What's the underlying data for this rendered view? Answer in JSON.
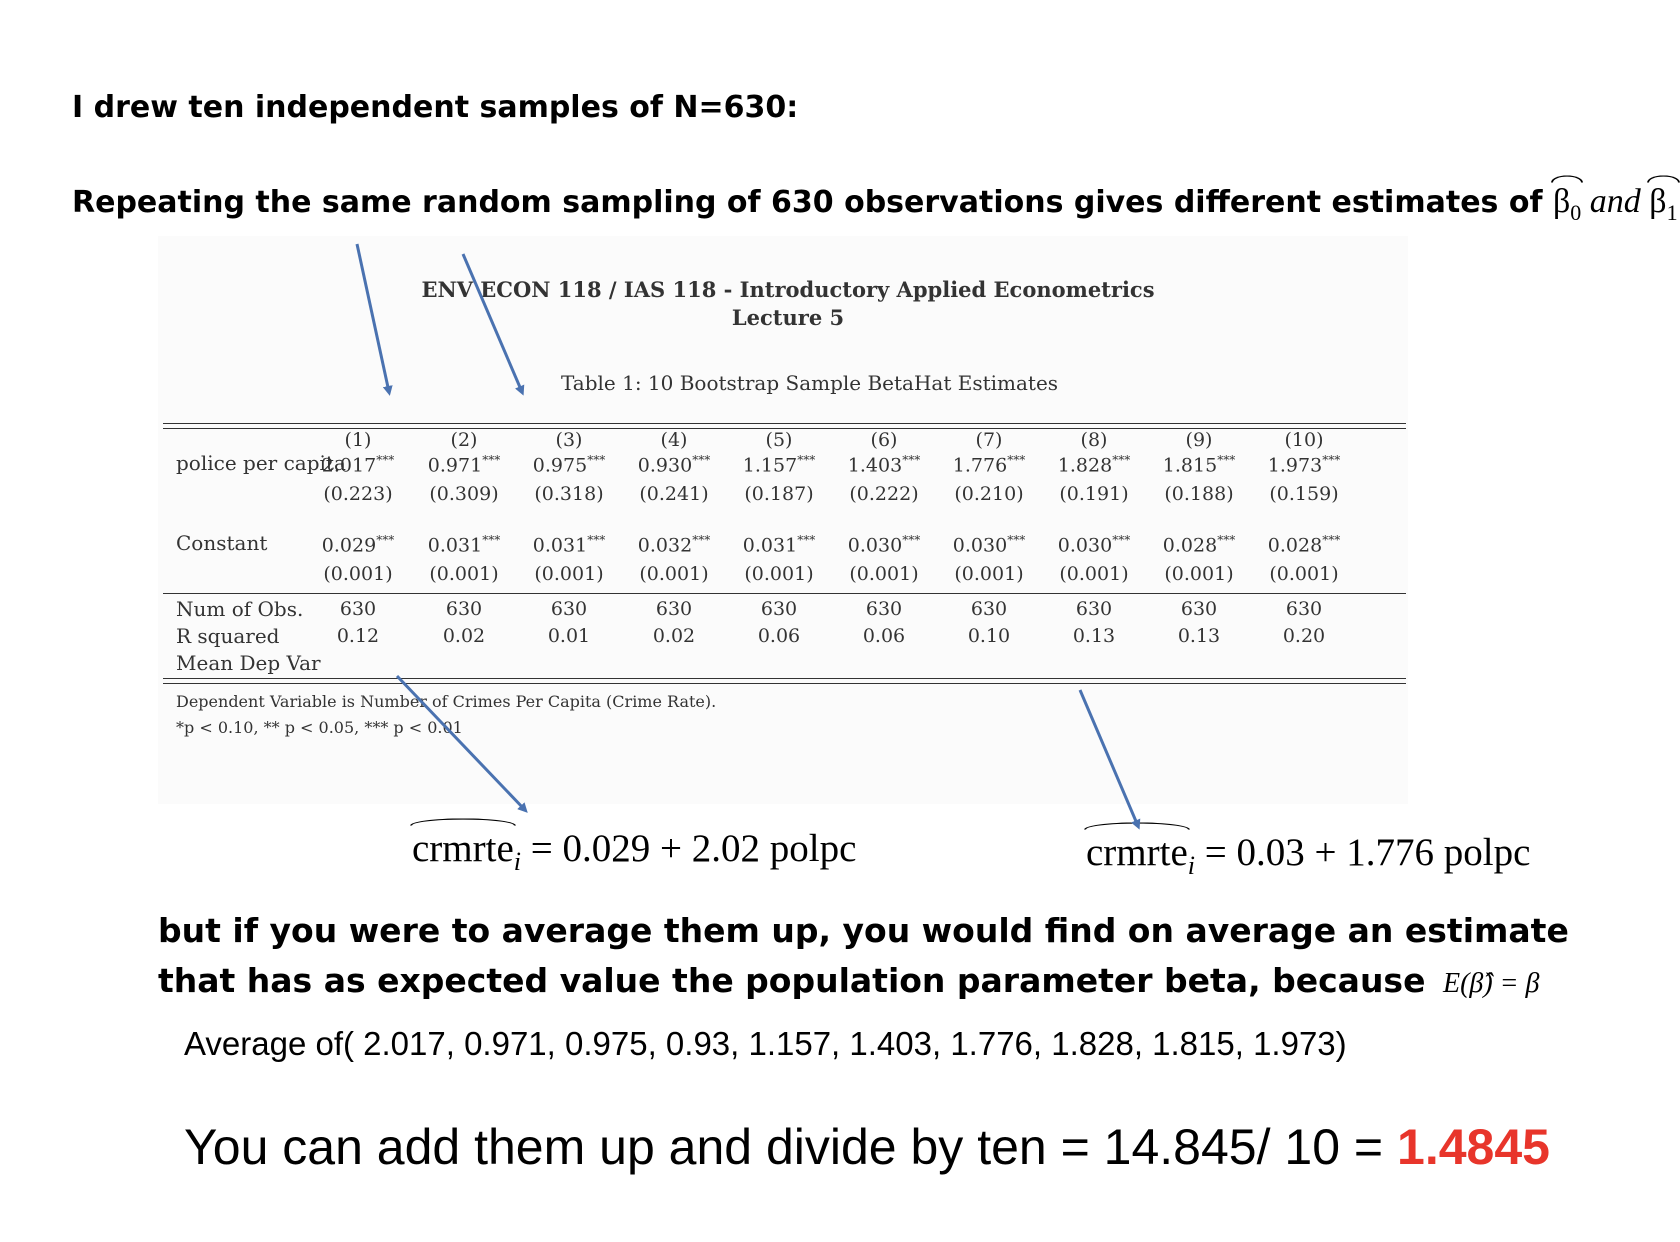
{
  "heading1": "I drew ten independent samples of N=630:",
  "heading2": {
    "text": "Repeating the same random sampling of 630 observations gives different estimates of",
    "sym_b0": "β",
    "sub0": "0",
    "and": "and",
    "sym_b1": "β",
    "sub1": "1"
  },
  "paper": {
    "title_line1": "ENV ECON 118 / IAS 118 - Introductory Applied Econometrics",
    "title_line2": "Lecture 5",
    "table_caption": "Table 1:  10 Bootstrap Sample BetaHat Estimates",
    "columns": [
      "(1)",
      "(2)",
      "(3)",
      "(4)",
      "(5)",
      "(6)",
      "(7)",
      "(8)",
      "(9)",
      "(10)"
    ],
    "rows": {
      "police_label": "police per capita",
      "police_coef": [
        "2.017",
        "0.971",
        "0.975",
        "0.930",
        "1.157",
        "1.403",
        "1.776",
        "1.828",
        "1.815",
        "1.973"
      ],
      "police_se": [
        "(0.223)",
        "(0.309)",
        "(0.318)",
        "(0.241)",
        "(0.187)",
        "(0.222)",
        "(0.210)",
        "(0.191)",
        "(0.188)",
        "(0.159)"
      ],
      "const_label": "Constant",
      "const_coef": [
        "0.029",
        "0.031",
        "0.031",
        "0.032",
        "0.031",
        "0.030",
        "0.030",
        "0.030",
        "0.028",
        "0.028"
      ],
      "const_se": [
        "(0.001)",
        "(0.001)",
        "(0.001)",
        "(0.001)",
        "(0.001)",
        "(0.001)",
        "(0.001)",
        "(0.001)",
        "(0.001)",
        "(0.001)"
      ],
      "nobs_label": "Num of Obs.",
      "nobs": [
        "630",
        "630",
        "630",
        "630",
        "630",
        "630",
        "630",
        "630",
        "630",
        "630"
      ],
      "r2_label": "R squared",
      "r2": [
        "0.12",
        "0.02",
        "0.01",
        "0.02",
        "0.06",
        "0.06",
        "0.10",
        "0.13",
        "0.13",
        "0.20"
      ],
      "mean_label": "Mean Dep Var",
      "stars": "***"
    },
    "note1": "Dependent Variable is Number of Crimes Per Capita (Crime Rate).",
    "note2": "*p < 0.10, ** p < 0.05, *** p < 0.01"
  },
  "eq_left": {
    "lhs": "crmrte",
    "sub": "i",
    "rhs": "= 0.029 + 2.02  polpc"
  },
  "eq_right": {
    "lhs": "crmrte",
    "sub": "i",
    "rhs": "= 0.03 + 1.776 polpc"
  },
  "para_line1": "but if you were to average them up, you would find on average an estimate",
  "para_line2": "that has as expected value the population parameter beta, because",
  "expect_formula": "E(β̂) = β",
  "average_line": "Average of( 2.017, 0.971, 0.975, 0.93, 1.157, 1.403, 1.776, 1.828, 1.815, 1.973)",
  "sum_line": "You can add them up and divide by ten = 14.845/ 10 =",
  "result": "1.4845",
  "colors": {
    "accent_red": "#e8352b",
    "arrow_blue": "#4a72b0"
  }
}
